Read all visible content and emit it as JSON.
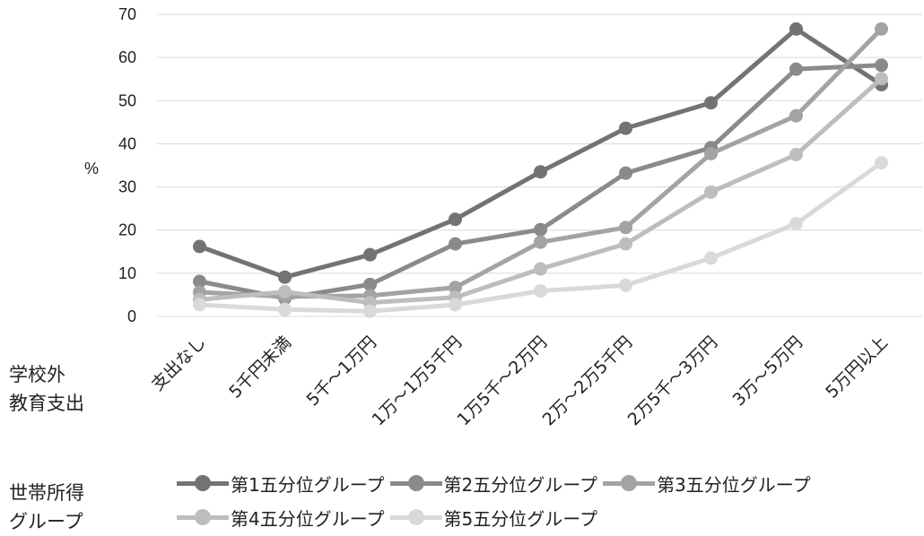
{
  "unit_label": "%",
  "x_side_label": "学校外\n教育支出",
  "legend_side_label": "世帯所得\nグループ",
  "colors": [
    "#737373",
    "#8a8a8a",
    "#a3a3a3",
    "#bdbdbd",
    "#d9d9d9"
  ],
  "chart_data": {
    "type": "line",
    "categories": [
      "支出なし",
      "5千円未満",
      "5千～1万円",
      "1万～1万5千円",
      "1万5千～2万円",
      "2万～2万5千円",
      "2万5千～3万円",
      "3万～5万円",
      "5万円以上"
    ],
    "ylim": [
      0,
      70
    ],
    "yticks": [
      0,
      10,
      20,
      30,
      40,
      50,
      60,
      70
    ],
    "grid": true,
    "legend_position": "bottom",
    "series": [
      {
        "name": "第1五分位グループ",
        "values": [
          16.2,
          9.1,
          14.3,
          22.5,
          33.5,
          43.6,
          49.5,
          66.6,
          53.7
        ]
      },
      {
        "name": "第2五分位グループ",
        "values": [
          8.1,
          4.2,
          7.4,
          16.8,
          20.1,
          33.2,
          39.1,
          57.3,
          58.2
        ]
      },
      {
        "name": "第3五分位グループ",
        "values": [
          5.6,
          4.6,
          4.8,
          6.7,
          17.2,
          20.6,
          37.7,
          46.5,
          66.6
        ]
      },
      {
        "name": "第4五分位グループ",
        "values": [
          3.9,
          5.7,
          3.2,
          4.4,
          11.0,
          16.8,
          28.8,
          37.5,
          55.1
        ]
      },
      {
        "name": "第5五分位グループ",
        "values": [
          2.7,
          1.6,
          1.2,
          2.7,
          5.9,
          7.2,
          13.5,
          21.5,
          35.6
        ]
      }
    ]
  }
}
